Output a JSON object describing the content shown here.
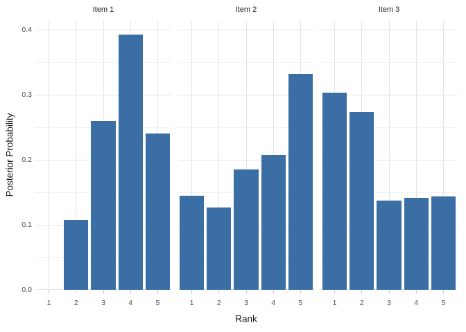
{
  "figure": {
    "background": "#ffffff",
    "bar_color": "#3a6ea5",
    "grid_major_color": "#e4e4e4",
    "grid_minor_color": "#f2f2f2",
    "axis_tick_color": "#c9c9c9",
    "axis_text_color": "#4d4d4d",
    "title_text_color": "#1a1a1a"
  },
  "chart_data": {
    "type": "bar",
    "title": "",
    "xlabel": "Rank",
    "ylabel": "Posterior Probability",
    "categories": [
      "1",
      "2",
      "3",
      "4",
      "5"
    ],
    "facets": [
      {
        "label": "Item 1",
        "values": [
          0.0,
          0.107,
          0.26,
          0.393,
          0.24
        ]
      },
      {
        "label": "Item 2",
        "values": [
          0.145,
          0.127,
          0.185,
          0.207,
          0.332
        ]
      },
      {
        "label": "Item 3",
        "values": [
          0.303,
          0.273,
          0.137,
          0.141,
          0.144
        ]
      }
    ],
    "ylim": [
      0,
      0.414
    ],
    "yticks": [
      0.0,
      0.1,
      0.2,
      0.3,
      0.4
    ],
    "ytick_labels": [
      "0.0",
      "0.1",
      "0.2",
      "0.3",
      "0.4"
    ],
    "yminor": [
      0.05,
      0.15,
      0.25,
      0.35
    ],
    "grid": true,
    "legend": "none",
    "bar_gap_fraction": 0.1
  }
}
